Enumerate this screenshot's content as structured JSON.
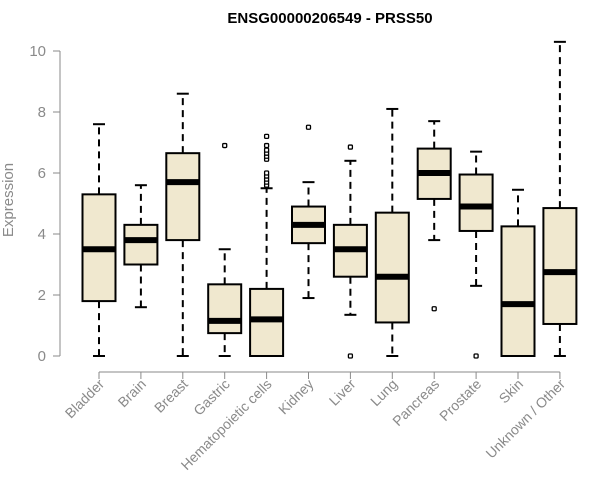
{
  "chart_data": {
    "type": "boxplot",
    "title": "ENSG00000206549 - PRSS50",
    "ylabel": "Expression",
    "xlabel": "",
    "ylim": [
      0,
      10.3
    ],
    "yticks": [
      0,
      2,
      4,
      6,
      8,
      10
    ],
    "grid": false,
    "box_fill": "#f0e8cf",
    "categories": [
      "Bladder",
      "Brain",
      "Breast",
      "Gastric",
      "Hematopoietic cells",
      "Kidney",
      "Liver",
      "Lung",
      "Pancreas",
      "Prostate",
      "Skin",
      "Unknown / Other"
    ],
    "boxes": [
      {
        "min": 0.0,
        "q1": 1.8,
        "median": 3.5,
        "q3": 5.3,
        "max": 7.6,
        "outliers": []
      },
      {
        "min": 1.6,
        "q1": 3.0,
        "median": 3.8,
        "q3": 4.3,
        "max": 5.6,
        "outliers": []
      },
      {
        "min": 0.0,
        "q1": 3.8,
        "median": 5.7,
        "q3": 6.65,
        "max": 8.6,
        "outliers": []
      },
      {
        "min": 0.0,
        "q1": 0.75,
        "median": 1.15,
        "q3": 2.35,
        "max": 3.5,
        "outliers": [
          6.9
        ]
      },
      {
        "min": 0.0,
        "q1": 0.0,
        "median": 1.2,
        "q3": 2.2,
        "max": 5.5,
        "outliers": [
          5.6,
          5.7,
          5.8,
          5.9,
          6.0,
          6.45,
          6.55,
          6.65,
          6.75,
          6.9,
          7.2
        ]
      },
      {
        "min": 1.9,
        "q1": 3.7,
        "median": 4.3,
        "q3": 4.9,
        "max": 5.7,
        "outliers": [
          7.5
        ]
      },
      {
        "min": 1.35,
        "q1": 2.6,
        "median": 3.5,
        "q3": 4.3,
        "max": 6.4,
        "outliers": [
          0.0,
          6.85
        ]
      },
      {
        "min": 0.0,
        "q1": 1.1,
        "median": 2.6,
        "q3": 4.7,
        "max": 8.1,
        "outliers": []
      },
      {
        "min": 3.8,
        "q1": 5.15,
        "median": 6.0,
        "q3": 6.8,
        "max": 7.7,
        "outliers": [
          1.55
        ]
      },
      {
        "min": 2.3,
        "q1": 4.1,
        "median": 4.9,
        "q3": 5.95,
        "max": 6.7,
        "outliers": [
          0.0
        ]
      },
      {
        "min": 0.0,
        "q1": 0.0,
        "median": 1.7,
        "q3": 4.25,
        "max": 5.45,
        "outliers": []
      },
      {
        "min": 0.0,
        "q1": 1.05,
        "median": 2.75,
        "q3": 4.85,
        "max": 10.3,
        "outliers": []
      }
    ]
  }
}
